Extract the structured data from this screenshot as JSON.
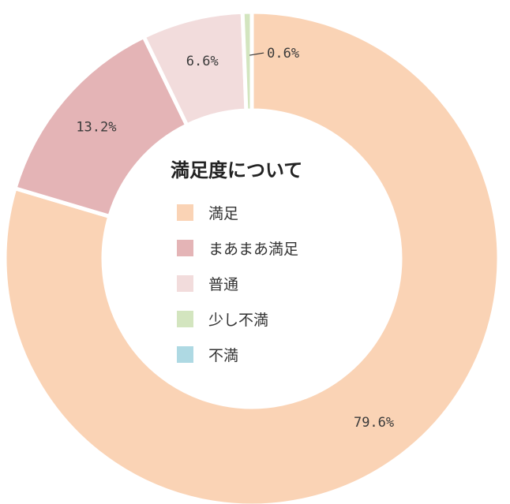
{
  "chart_data": {
    "type": "pie",
    "style": "donut",
    "legend_position": "center",
    "title": "満足度について",
    "categories": [
      "満足",
      "まあまあ満足",
      "普通",
      "少し不満",
      "不満"
    ],
    "values": [
      79.6,
      13.2,
      6.6,
      0.6,
      0.0
    ],
    "labels": [
      "79.6%",
      "13.2%",
      "6.6%",
      "0.6%",
      ""
    ],
    "colors": [
      "#fad3b5",
      "#e4b4b6",
      "#f2dcdc",
      "#d3e5bf",
      "#aed9e3"
    ]
  }
}
